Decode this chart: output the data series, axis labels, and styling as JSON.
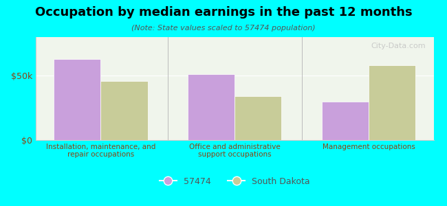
{
  "title": "Occupation by median earnings in the past 12 months",
  "subtitle": "(Note: State values scaled to 57474 population)",
  "categories": [
    "Installation, maintenance, and\nrepair occupations",
    "Office and administrative\nsupport occupations",
    "Management occupations"
  ],
  "values_57474": [
    63000,
    51000,
    30000
  ],
  "values_sd": [
    46000,
    34000,
    58000
  ],
  "color_57474": "#c9a0dc",
  "color_sd": "#c8cc99",
  "legend_57474": "57474",
  "legend_sd": "South Dakota",
  "ylim": [
    0,
    80000
  ],
  "yticks": [
    0,
    50000
  ],
  "ytick_labels": [
    "$0",
    "$50k"
  ],
  "background_color": "#00ffff",
  "plot_bg_color": "#f0f5ec",
  "bar_width": 0.35,
  "watermark": "City-Data.com"
}
